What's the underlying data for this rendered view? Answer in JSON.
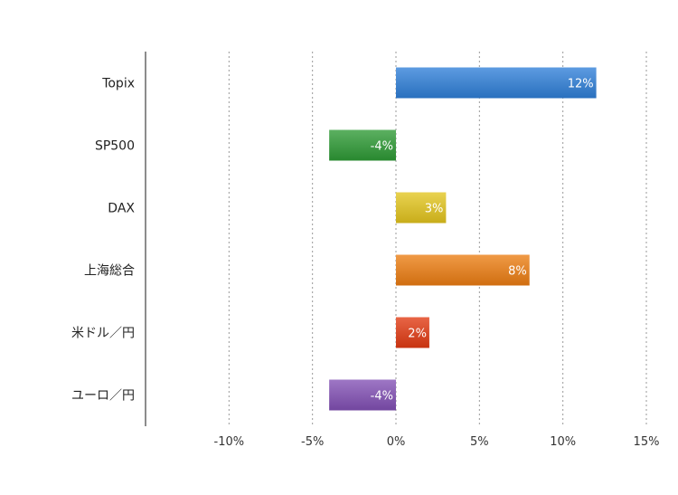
{
  "chart_data": {
    "type": "bar",
    "orientation": "horizontal",
    "categories": [
      "Topix",
      "SP500",
      "DAX",
      "上海総合",
      "米ドル／円",
      "ユーロ／円"
    ],
    "values": [
      12,
      -4,
      3,
      8,
      2,
      -4
    ],
    "data_labels": [
      "12%",
      "-4%",
      "3%",
      "8%",
      "2%",
      "-4%"
    ],
    "colors": [
      "#2f7fd8",
      "#2e9a35",
      "#e3c51e",
      "#ec7d12",
      "#e23a12",
      "#8250b5"
    ],
    "xlim": [
      -15,
      15
    ],
    "x_ticks": [
      -10,
      -5,
      0,
      5,
      10,
      15
    ],
    "x_tick_labels": [
      "-10%",
      "-5%",
      "0%",
      "5%",
      "10%",
      "15%"
    ],
    "grid": "vertical dotted",
    "title": "",
    "xlabel": "",
    "ylabel": ""
  }
}
